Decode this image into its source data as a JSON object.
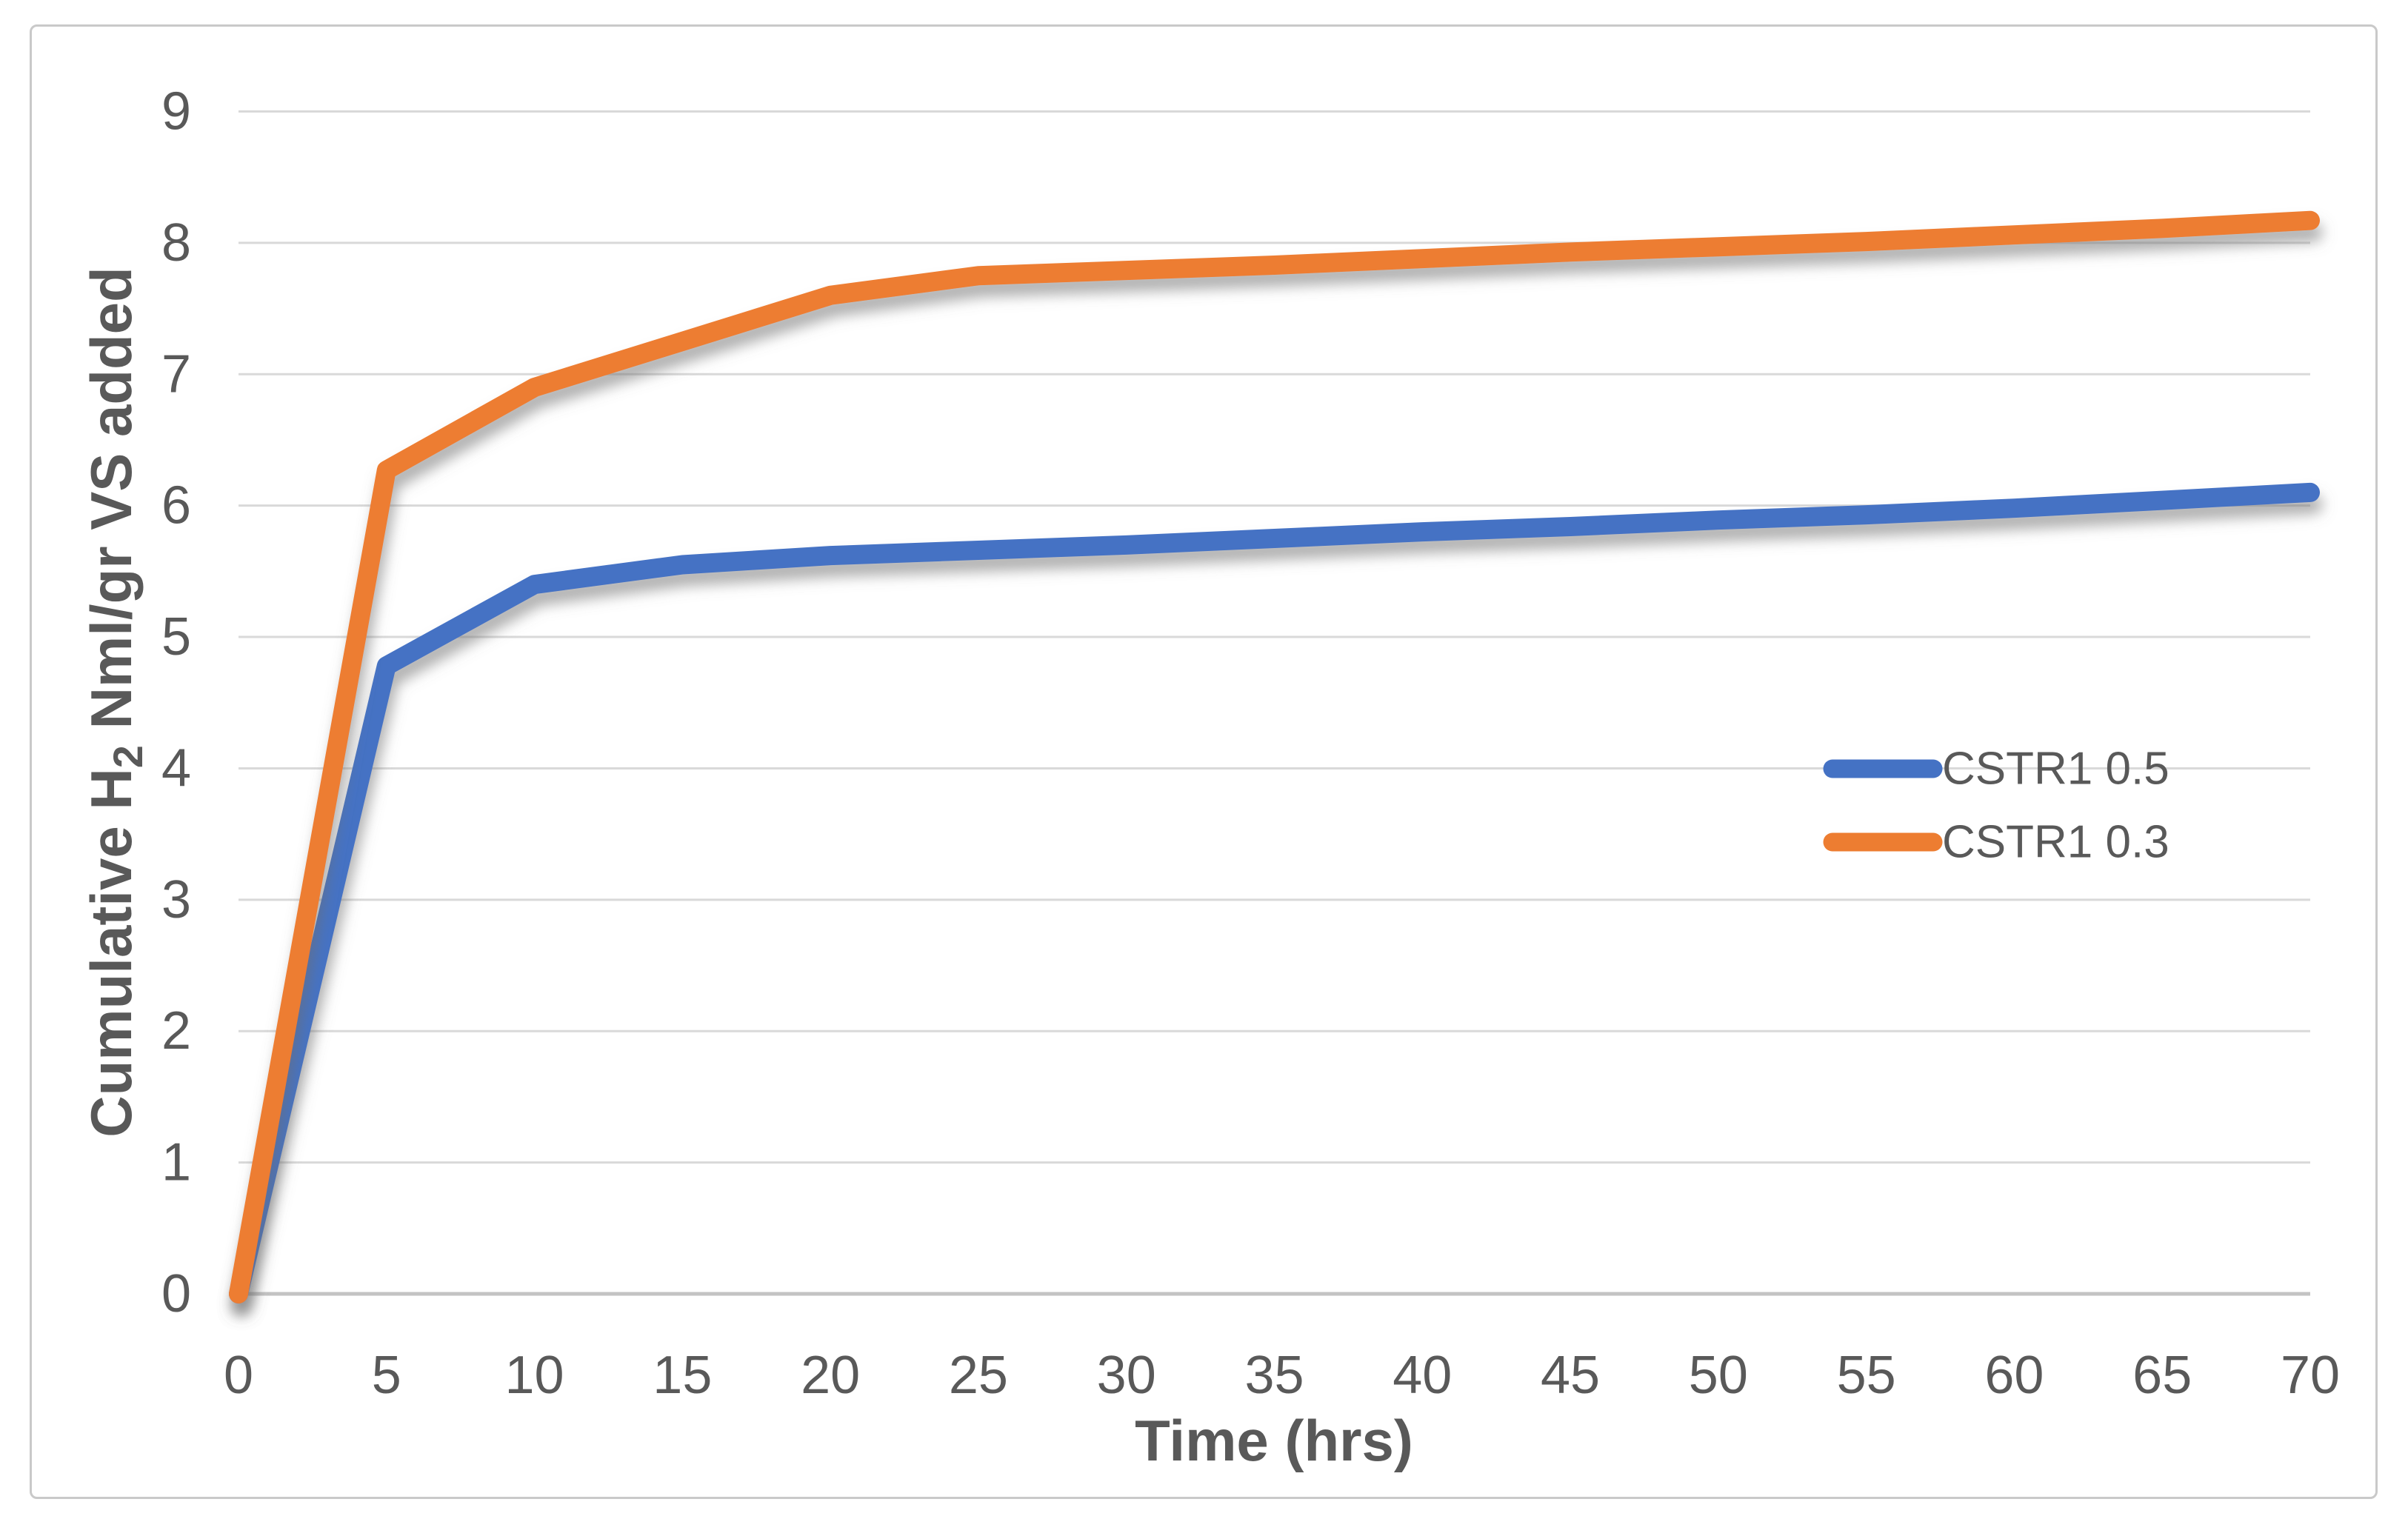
{
  "chart_data": {
    "type": "line",
    "title": "",
    "xlabel": "Time (hrs)",
    "ylabel": "Cumulative H2 Nml/gr VS added",
    "ylabel_parts": {
      "pre": "Cumulative H",
      "sub": "2",
      "post": " Nml/gr VS added"
    },
    "x": [
      0,
      5,
      10,
      15,
      20,
      25,
      30,
      35,
      40,
      45,
      50,
      55,
      60,
      65,
      70
    ],
    "series": [
      {
        "name": "CSTR1 0.5",
        "color": "#4472C4",
        "values": [
          0,
          4.78,
          5.4,
          5.55,
          5.62,
          5.66,
          5.7,
          5.75,
          5.8,
          5.84,
          5.89,
          5.93,
          5.98,
          6.04,
          6.1
        ]
      },
      {
        "name": "CSTR1 0.3",
        "color": "#ED7D31",
        "values": [
          0,
          6.27,
          6.9,
          7.25,
          7.6,
          7.75,
          7.79,
          7.83,
          7.88,
          7.93,
          7.97,
          8.01,
          8.06,
          8.11,
          8.17
        ]
      }
    ],
    "xlim": [
      0,
      70
    ],
    "ylim": [
      0,
      9
    ],
    "x_tick_step": 5,
    "y_tick_step": 1,
    "grid": true,
    "legend_position": "inside-right-middle"
  },
  "styles": {
    "grid_color": "#D9D9D9",
    "axis_line_color": "#C3C3C3",
    "tick_label_color": "#595959",
    "axis_title_color": "#595959",
    "legend_text_color": "#595959",
    "chart_border_color": "#C9C9C9",
    "background": "#FFFFFF",
    "series_blue": "#4472C4",
    "series_orange": "#ED7D31"
  }
}
